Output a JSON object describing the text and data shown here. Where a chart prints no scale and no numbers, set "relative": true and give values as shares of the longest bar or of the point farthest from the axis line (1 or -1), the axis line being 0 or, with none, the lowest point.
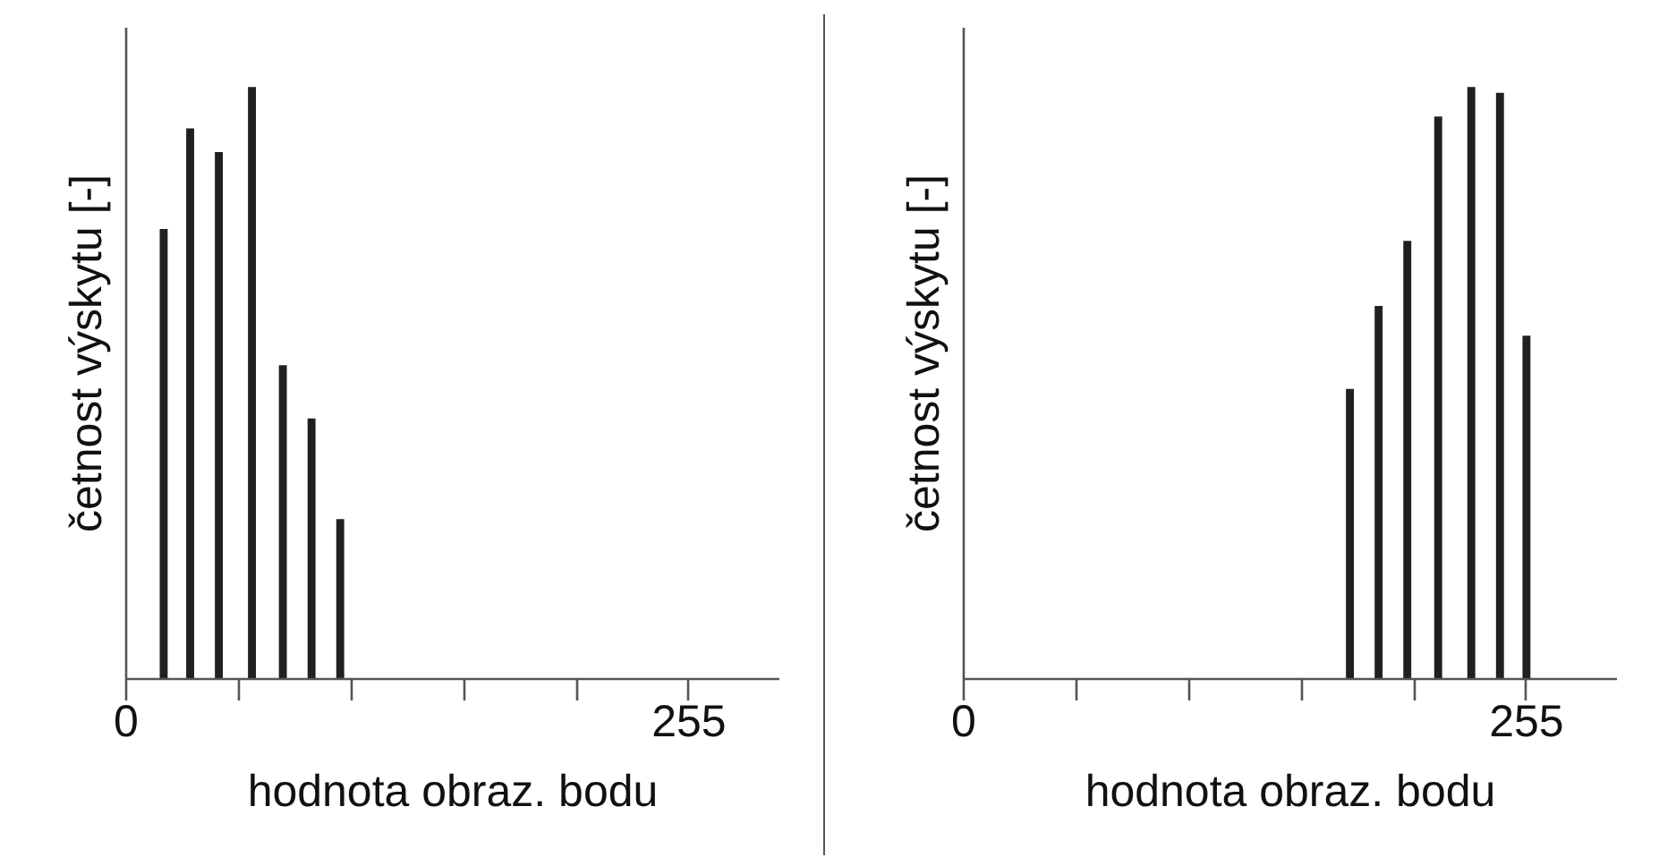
{
  "chart_data": [
    {
      "type": "bar",
      "relative": true,
      "color": "#231f20",
      "xlabel": "hodnota obraz. bodu",
      "ylabel": "četnost výskytu [-]",
      "xlim": [
        0,
        296
      ],
      "xticks": [
        0,
        {
          "value": 51,
          "label": null
        },
        {
          "value": 102,
          "label": null
        },
        {
          "value": 153,
          "label": null
        },
        {
          "value": 204,
          "label": null
        },
        255
      ],
      "x": [
        17,
        29,
        42,
        57,
        71,
        84,
        97
      ],
      "values": [
        0.76,
        0.93,
        0.89,
        1.0,
        0.53,
        0.44,
        0.27
      ]
    },
    {
      "type": "bar",
      "relative": true,
      "color": "#231f20",
      "xlabel": "hodnota obraz. bodu",
      "ylabel": "četnost výskytu [-]",
      "xlim": [
        0,
        296
      ],
      "xticks": [
        0,
        {
          "value": 51,
          "label": null
        },
        {
          "value": 102,
          "label": null
        },
        {
          "value": 153,
          "label": null
        },
        {
          "value": 204,
          "label": null
        },
        255
      ],
      "x": [
        175,
        188,
        201,
        215,
        230,
        243,
        255
      ],
      "values": [
        0.49,
        0.63,
        0.74,
        0.95,
        1.0,
        0.99,
        0.58
      ]
    }
  ]
}
